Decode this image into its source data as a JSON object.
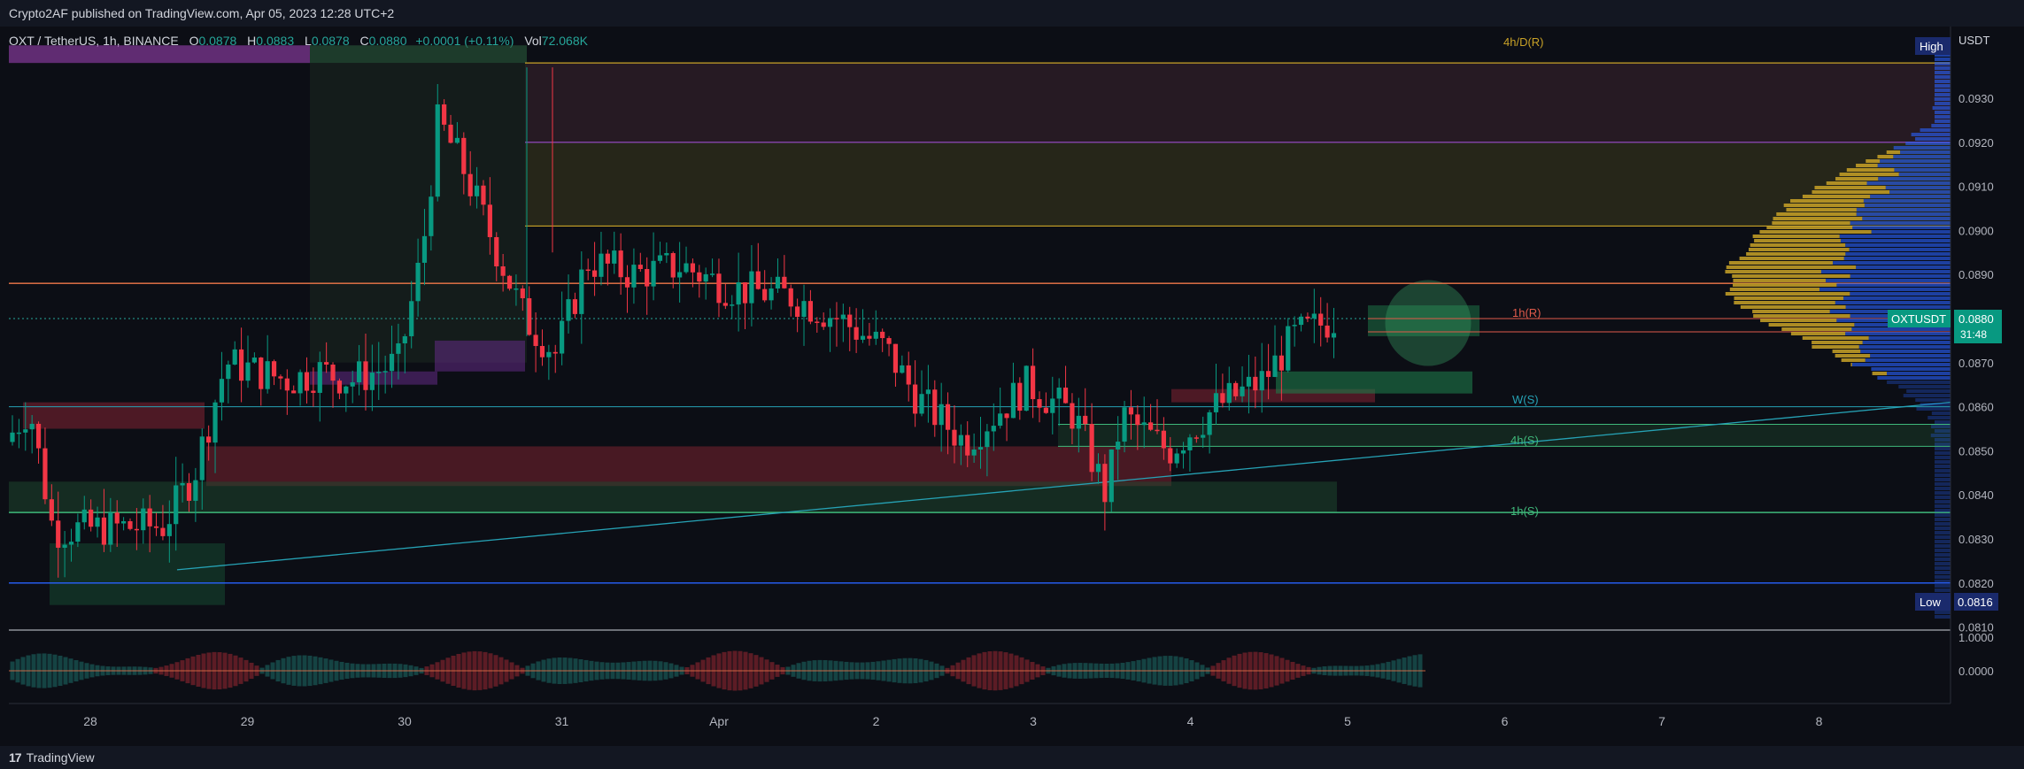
{
  "header": {
    "published": "Crypto2AF published on TradingView.com, Apr 05, 2023 12:28 UTC+2"
  },
  "footer": {
    "brand": "TradingView",
    "logo_glyph": "17"
  },
  "legend": {
    "symbol": "OXT / TetherUS, 1h, BINANCE",
    "o_label": "O",
    "o": "0.0878",
    "h_label": "H",
    "h": "0.0883",
    "l_label": "L",
    "l": "0.0878",
    "c_label": "C",
    "c": "0.0880",
    "change": "+0.0001 (+0.11%)",
    "vol_label": "Vol",
    "vol": "72.068K"
  },
  "price_axis": {
    "unit": "USDT",
    "ticks": [
      "0.0930",
      "0.0920",
      "0.0910",
      "0.0900",
      "0.0890",
      "0.0870",
      "0.0860",
      "0.0850",
      "0.0840",
      "0.0830",
      "0.0820",
      "0.0810"
    ],
    "high_label": "High",
    "low_label": "Low",
    "low_value": "0.0816",
    "current_symbol": "OXTUSDT",
    "current_price": "0.0880",
    "countdown": "31:48"
  },
  "osc_axis": {
    "ticks": [
      "1.0000",
      "0.0000"
    ]
  },
  "time_axis": {
    "ticks": [
      "28",
      "29",
      "30",
      "31",
      "Apr",
      "2",
      "3",
      "4",
      "5",
      "6",
      "7",
      "8"
    ]
  },
  "annotations": {
    "d_res": "4h/D(R)",
    "h1_res": "1h(R)",
    "w_sup": "W(S)",
    "h4_sup": "4h(S)",
    "h1_sup": "1h(S)"
  },
  "colors": {
    "bg": "#0c0e15",
    "up": "#089981",
    "down": "#f23645",
    "resistance_line": "#f0784a",
    "gold": "#c9a227",
    "purple": "#9c4dcc",
    "green_zone": "#1e7a4a",
    "red_zone": "#7a2230",
    "blue_line": "#2962ff",
    "teal_line": "#26a2b5"
  },
  "chart_data": {
    "type": "candlestick",
    "symbol": "OXT / TetherUS",
    "interval": "1h",
    "ylim": [
      0.0808,
      0.0942
    ],
    "x": [
      "28",
      "29",
      "30",
      "31",
      "Apr",
      "2",
      "3",
      "4",
      "5"
    ],
    "close_approx": [
      0.0835,
      0.0838,
      0.0866,
      0.0902,
      0.0893,
      0.0885,
      0.0856,
      0.085,
      0.088
    ],
    "high_approx": [
      0.086,
      0.0852,
      0.087,
      0.0937,
      0.0901,
      0.0902,
      0.0888,
      0.0866,
      0.0883
    ],
    "low_approx": [
      0.0828,
      0.0823,
      0.085,
      0.0862,
      0.0871,
      0.0876,
      0.0852,
      0.0836,
      0.0855
    ],
    "last": {
      "o": 0.0878,
      "h": 0.0883,
      "l": 0.0878,
      "c": 0.088,
      "volume": "72.068K"
    },
    "levels": [
      {
        "label": "4h/D(R)",
        "price": 0.0938
      },
      {
        "label": "1h(R)",
        "price": 0.088
      },
      {
        "label": "W(S)",
        "price": 0.086
      },
      {
        "label": "4h(S)",
        "price": 0.0852
      },
      {
        "label": "1h(S)",
        "price": 0.0836
      }
    ]
  }
}
